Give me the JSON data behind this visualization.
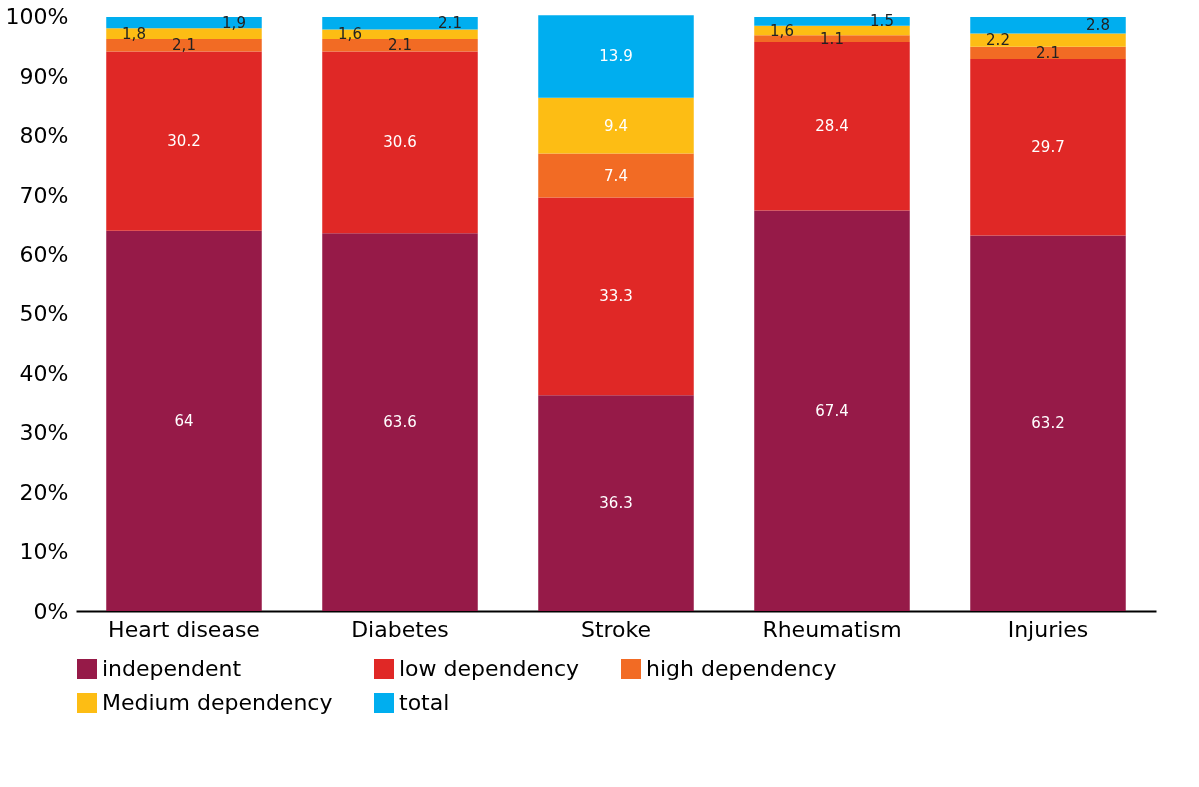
{
  "chart_data": {
    "type": "bar",
    "stacked": true,
    "categories": [
      "Heart disease",
      "Diabetes",
      "Stroke",
      "Rheumatism",
      "Injuries"
    ],
    "series": [
      {
        "name": "independent",
        "color": "#961a48",
        "values": [
          64,
          63.6,
          36.3,
          67.4,
          63.2
        ],
        "value_labels": [
          "64",
          "63.6",
          "36.3",
          "67.4",
          "63.2"
        ]
      },
      {
        "name": "low dependency",
        "color": "#e02826",
        "values": [
          30.2,
          30.6,
          33.3,
          28.4,
          29.7
        ],
        "value_labels": [
          "30.2",
          "30.6",
          "33.3",
          "28.4",
          "29.7"
        ]
      },
      {
        "name": "high dependency",
        "color": "#f26b24",
        "values": [
          2.1,
          2.1,
          7.4,
          1.1,
          2.1
        ],
        "value_labels": [
          "2,1",
          "2.1",
          "7.4",
          "1.1",
          "2.1"
        ]
      },
      {
        "name": "Medium dependency",
        "color": "#fdbd14",
        "values": [
          1.8,
          1.6,
          9.4,
          1.6,
          2.2
        ],
        "value_labels": [
          "1,8",
          "1,6",
          "9.4",
          "1,6",
          "2.2"
        ]
      },
      {
        "name": "total",
        "color": "#00aeef",
        "values": [
          1.9,
          2.1,
          13.9,
          1.5,
          2.8
        ],
        "value_labels": [
          "1,9",
          "2.1",
          "13.9",
          "1.5",
          "2.8"
        ]
      }
    ],
    "ylim": [
      0,
      101
    ],
    "yticks": [
      {
        "value": 0,
        "label": "0%"
      },
      {
        "value": 10,
        "label": "10%"
      },
      {
        "value": 20,
        "label": "20%"
      },
      {
        "value": 30,
        "label": "30%"
      },
      {
        "value": 40,
        "label": "40%"
      },
      {
        "value": 50,
        "label": "50%"
      },
      {
        "value": 60,
        "label": "60%"
      },
      {
        "value": 70,
        "label": "70%"
      },
      {
        "value": 80,
        "label": "80%"
      },
      {
        "value": 90,
        "label": "90%"
      },
      {
        "value": 100,
        "label": "100%"
      }
    ],
    "grid": false,
    "legend": "bottom"
  }
}
